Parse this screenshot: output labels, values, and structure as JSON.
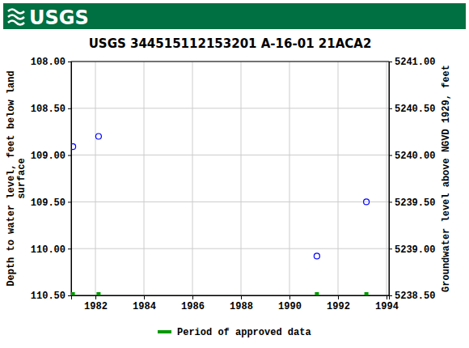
{
  "chart_data": {
    "type": "scatter",
    "header": "USGS",
    "title": "USGS 344515112153201 A-16-01 21ACA2",
    "ylabel": [
      "Depth to water level, feet below land",
      "surface"
    ],
    "y2label": "Groundwater level above NGVD 1929, feet",
    "xlim": [
      1981,
      1994.1
    ],
    "xticks": [
      1982,
      1984,
      1986,
      1988,
      1990,
      1992,
      1994
    ],
    "ylim": [
      108.0,
      110.5
    ],
    "yticks": [
      {
        "value": 108.0,
        "label": "108.00"
      },
      {
        "value": 108.5,
        "label": "108.50"
      },
      {
        "value": 109.0,
        "label": "109.00"
      },
      {
        "value": 109.5,
        "label": "109.50"
      },
      {
        "value": 110.0,
        "label": "110.00"
      },
      {
        "value": 110.5,
        "label": "110.50"
      }
    ],
    "y2lim": [
      5241.0,
      5238.5
    ],
    "y2ticks": [
      {
        "value": 5241.0,
        "label": "5241.00"
      },
      {
        "value": 5240.5,
        "label": "5240.50"
      },
      {
        "value": 5240.0,
        "label": "5240.00"
      },
      {
        "value": 5239.5,
        "label": "5239.50"
      },
      {
        "value": 5239.0,
        "label": "5239.00"
      },
      {
        "value": 5238.5,
        "label": "5238.50"
      }
    ],
    "grid": true,
    "legend": "bottom",
    "series": [
      {
        "color": "#0000ff",
        "marker": "circle-open",
        "x": [
          1981.07,
          1982.13,
          1991.13,
          1993.17
        ],
        "values": [
          108.91,
          108.8,
          110.08,
          109.5
        ]
      },
      {
        "name": "Period of approved data",
        "color": "#009900",
        "marker": "square",
        "x": [
          1981.07,
          1982.13,
          1991.13,
          1993.17
        ],
        "values": [
          110.5,
          110.5,
          110.5,
          110.5
        ]
      }
    ]
  }
}
